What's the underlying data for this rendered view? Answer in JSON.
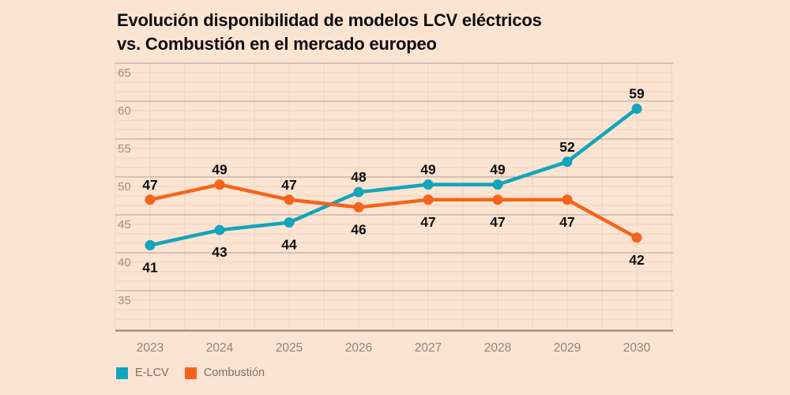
{
  "title_lines": [
    "Evolución disponibilidad de modelos LCV eléctricos",
    "vs. Combustión en el mercado europeo"
  ],
  "colors": {
    "background": "#fce4d2",
    "grid_minor": "#f0d3bf",
    "grid_major": "#b2a093",
    "axis_line": "#a09185",
    "ytick_label": "#9c9084",
    "xtick_label": "#8f857b",
    "data_label": "#0e0e0e",
    "title": "#0e0e0e",
    "legend_text": "#7b7168",
    "series_elcv": "#12a5bc",
    "series_combustion": "#f5641c"
  },
  "chart_data": {
    "type": "line",
    "title": "Evolución disponibilidad de modelos LCV eléctricos vs. Combustión en el mercado europeo",
    "x": [
      "2023",
      "2024",
      "2025",
      "2026",
      "2027",
      "2028",
      "2029",
      "2030"
    ],
    "series": [
      {
        "name": "E-LCV",
        "color": "#12a5bc",
        "values": [
          41,
          43,
          44,
          48,
          49,
          49,
          52,
          59
        ]
      },
      {
        "name": "Combustión",
        "color": "#f5641c",
        "values": [
          47,
          49,
          47,
          46,
          47,
          47,
          47,
          42
        ]
      }
    ],
    "yticks": [
      35,
      40,
      45,
      50,
      55,
      60,
      65
    ],
    "ylim": [
      30,
      65
    ],
    "grid": "major+minor",
    "data_labels": true,
    "legend_position": "bottom-left",
    "xlabel": "",
    "ylabel": ""
  }
}
